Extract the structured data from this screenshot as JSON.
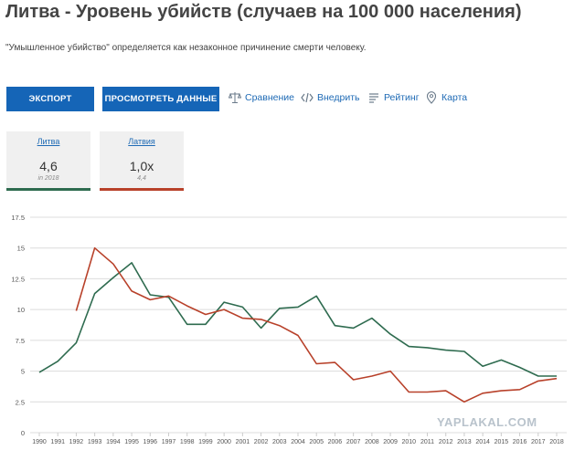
{
  "header": {
    "title": "Литва - Уровень убийств (случаев на 100 000 населения)",
    "subtitle": "\"Умышленное убийство\" определяется как незаконное причинение смерти человеку."
  },
  "toolbar": {
    "export_label": "ЭКСПОРТ",
    "view_data_label": "ПРОСМОТРЕТЬ ДАННЫЕ",
    "compare_label": "Сравнение",
    "embed_label": "Внедрить",
    "rating_label": "Рейтинг",
    "map_label": "Карта",
    "icons": [
      "scales-icon",
      "code-icon",
      "list-icon",
      "map-pin-icon"
    ]
  },
  "cards": [
    {
      "name": "Литва",
      "value": "4,6",
      "note": "in 2018",
      "color": "#2e6b4f"
    },
    {
      "name": "Латвия",
      "value": "1,0x",
      "note": "4,4",
      "color": "#b8412a"
    }
  ],
  "watermark": "YAPLAKAL.COM",
  "chart_data": {
    "type": "line",
    "x": [
      1990,
      1991,
      1992,
      1993,
      1994,
      1995,
      1996,
      1997,
      1998,
      1999,
      2000,
      2001,
      2002,
      2003,
      2004,
      2005,
      2006,
      2007,
      2008,
      2009,
      2010,
      2011,
      2012,
      2013,
      2014,
      2015,
      2016,
      2017,
      2018
    ],
    "ylim": [
      0,
      17.5
    ],
    "yticks": [
      "0",
      "2.5",
      "5",
      "7.5",
      "10",
      "12.5",
      "15",
      "17.5"
    ],
    "grid": true,
    "series": [
      {
        "color": "#2e6b4f",
        "values": [
          4.9,
          5.8,
          7.3,
          11.3,
          12.6,
          13.8,
          11.2,
          11.0,
          8.8,
          8.8,
          10.6,
          10.2,
          8.5,
          10.1,
          10.2,
          11.1,
          8.7,
          8.5,
          9.3,
          8.0,
          7.0,
          6.9,
          6.7,
          6.6,
          5.4,
          5.9,
          5.3,
          4.6,
          4.6
        ]
      },
      {
        "color": "#b8412a",
        "values": [
          null,
          null,
          9.9,
          15.0,
          13.7,
          11.5,
          10.8,
          11.1,
          10.3,
          9.6,
          10.0,
          9.3,
          9.2,
          8.7,
          7.9,
          5.6,
          5.7,
          4.3,
          4.6,
          5.0,
          3.3,
          3.3,
          3.4,
          2.5,
          3.2,
          3.4,
          3.5,
          4.2,
          4.4
        ]
      }
    ]
  }
}
